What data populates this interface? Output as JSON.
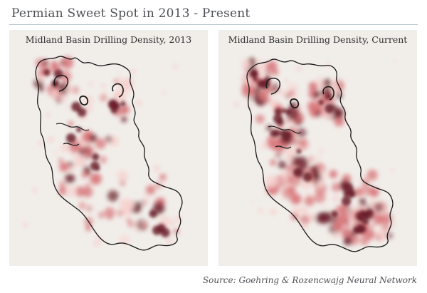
{
  "title": "Permian Sweet Spot in 2013 - Present",
  "panels": [
    {
      "title": "Midland Basin Drilling Density, 2013"
    },
    {
      "title": "Midland Basin Drilling Density, Current"
    }
  ],
  "source": "Source: Goehring & Rozencwajg Neural Network",
  "colors": {
    "background": "#f1eeea",
    "density_low": "#f6d3cf",
    "density_mid": "#d9777b",
    "density_high": "#6b1f2a",
    "outline": "#1a1a1a"
  }
}
